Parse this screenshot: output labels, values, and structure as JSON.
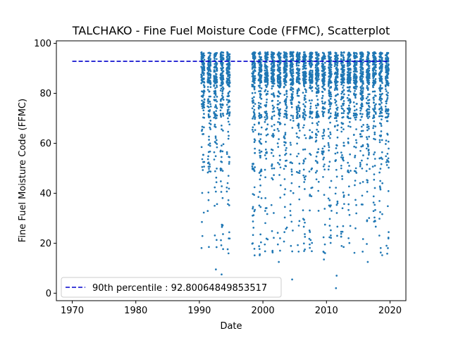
{
  "chart_data": {
    "type": "scatter",
    "title": "TALCHAKO - Fine Fuel Moisture Code (FFMC), Scatterplot",
    "xlabel": "Date",
    "ylabel": "Fine Fuel Moisture Code (FFMC)",
    "xlim": [
      1967.5,
      2022.5
    ],
    "ylim": [
      -3,
      101
    ],
    "x_ticks": [
      1970,
      1980,
      1990,
      2000,
      2010,
      2020
    ],
    "y_ticks": [
      0,
      20,
      40,
      60,
      80,
      100
    ],
    "point_color": "#1f77b4",
    "seasons": [
      1990,
      1991,
      1992,
      1993,
      1994,
      1998,
      1999,
      2000,
      2001,
      2002,
      2003,
      2004,
      2005,
      2006,
      2007,
      2008,
      2009,
      2010,
      2011,
      2012,
      2013,
      2014,
      2015,
      2016,
      2017,
      2018,
      2019
    ],
    "season_start_offset": 0.3,
    "season_end_offset": 0.8,
    "points_per_season": 140,
    "sample_low_points": [
      {
        "x": 1990.4,
        "y": 28.5
      },
      {
        "x": 1991.5,
        "y": 18.5
      },
      {
        "x": 1992.6,
        "y": 9.5
      },
      {
        "x": 1993.5,
        "y": 7.5
      },
      {
        "x": 1999.3,
        "y": 38.5
      },
      {
        "x": 2000.3,
        "y": 19.5
      },
      {
        "x": 2002.5,
        "y": 12.5
      },
      {
        "x": 2004.6,
        "y": 5.5
      },
      {
        "x": 2006.6,
        "y": 17.5
      },
      {
        "x": 2009.6,
        "y": 13.5
      },
      {
        "x": 2011.5,
        "y": 2.0
      },
      {
        "x": 2011.6,
        "y": 7.0
      },
      {
        "x": 2012.7,
        "y": 18.5
      },
      {
        "x": 2016.5,
        "y": 12.5
      },
      {
        "x": 2018.5,
        "y": 41.5
      }
    ],
    "reference_line": {
      "label": "90th percentile : 92.80064849853517",
      "value": 92.80064849853517,
      "x_range": [
        1970,
        2019.6
      ],
      "color": "#0000cc",
      "style": "dashed"
    },
    "legend_position": "lower-left",
    "grid": false
  }
}
